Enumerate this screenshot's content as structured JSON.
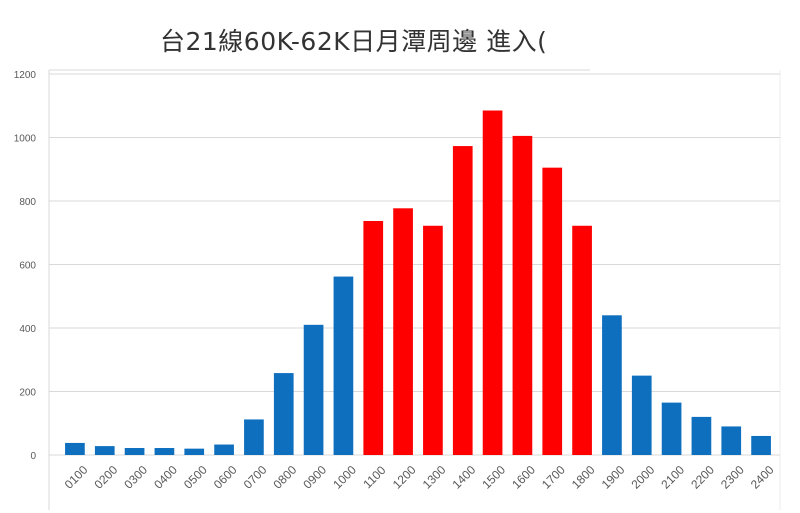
{
  "chart_data": {
    "type": "bar",
    "title": "台21線60K-62K日月潭周邊 進入(",
    "xlabel": "",
    "ylabel": "",
    "ylim": [
      0,
      1200
    ],
    "yticks": [
      0,
      200,
      400,
      600,
      800,
      1000,
      1200
    ],
    "grid": true,
    "legend": "none",
    "categories": [
      "0100",
      "0200",
      "0300",
      "0400",
      "0500",
      "0600",
      "0700",
      "0800",
      "0900",
      "1000",
      "1100",
      "1200",
      "1300",
      "1400",
      "1500",
      "1600",
      "1700",
      "1800",
      "1900",
      "2000",
      "2100",
      "2200",
      "2300",
      "2400"
    ],
    "values": [
      38,
      28,
      22,
      22,
      20,
      33,
      112,
      258,
      410,
      562,
      737,
      777,
      722,
      973,
      1085,
      1005,
      905,
      722,
      440,
      250,
      165,
      120,
      90,
      60
    ],
    "highlighted_categories": [
      "1100",
      "1200",
      "1300",
      "1400",
      "1500",
      "1600",
      "1700",
      "1800"
    ],
    "colors": {
      "normal": "#0e6fbf",
      "highlight": "#ff0000",
      "grid": "#d9d9d9",
      "axis": "#d9d9d9"
    }
  }
}
